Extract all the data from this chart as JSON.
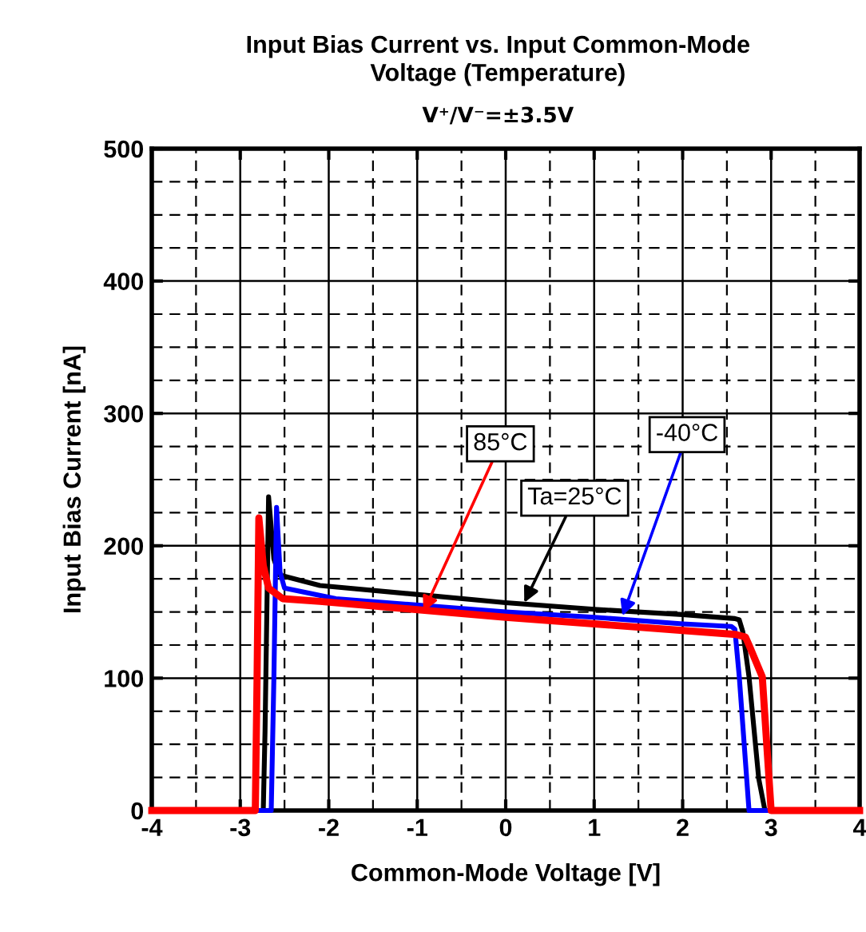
{
  "chart_data": {
    "type": "line",
    "title": "Input Bias Current vs. Input Common-Mode\nVoltage (Temperature)",
    "subtitle": "V⁺/V⁻=±3.5V",
    "xlabel": "Common-Mode Voltage [V]",
    "ylabel": "Input Bias Current [nA]",
    "xlim": [
      -4,
      4
    ],
    "xticks": [
      -4,
      -3,
      -2,
      -1,
      0,
      1,
      2,
      3,
      4
    ],
    "ylim": [
      0,
      500
    ],
    "yticks": [
      0,
      100,
      200,
      300,
      400,
      500
    ],
    "grid": true,
    "legend": false,
    "line_style": "solid",
    "marker": "none",
    "series": [
      {
        "color": "#000000",
        "x": [
          -4,
          -2.74,
          -2.72,
          -2.68,
          -2.62,
          -2.56,
          -2.1,
          0,
          1,
          2,
          2.59,
          2.64,
          2.68,
          2.75,
          2.86,
          2.93,
          4
        ],
        "values": [
          0,
          0,
          60,
          237,
          190,
          178,
          170,
          157,
          152,
          148,
          145,
          144,
          135,
          101,
          24,
          0,
          0
        ]
      },
      {
        "color": "#0000ff",
        "x": [
          -4,
          -2.65,
          -2.62,
          -2.59,
          -2.55,
          -2.5,
          -1.92,
          0,
          1,
          2,
          2.55,
          2.59,
          2.64,
          2.75,
          4
        ],
        "values": [
          0,
          0,
          100,
          229,
          180,
          168,
          160,
          150,
          146,
          141,
          139,
          137,
          101,
          0,
          0
        ]
      },
      {
        "color": "#ff0000",
        "x": [
          -4,
          -2.83,
          -2.81,
          -2.79,
          -2.74,
          -2.68,
          -2.52,
          -2.1,
          0,
          1,
          2,
          2.6,
          2.71,
          2.75,
          2.9,
          3.0,
          4
        ],
        "values": [
          0,
          0,
          100,
          221,
          185,
          168,
          160,
          158,
          146,
          141,
          136,
          133,
          131,
          125,
          101,
          0,
          0
        ]
      }
    ],
    "annotations": [
      {
        "text": "85°C",
        "x": -0.93,
        "y": 150
      },
      {
        "text": "Ta=25°C",
        "x": 0.21,
        "y": 157
      },
      {
        "text": "-40°C",
        "x": 1.32,
        "y": 147
      }
    ]
  }
}
